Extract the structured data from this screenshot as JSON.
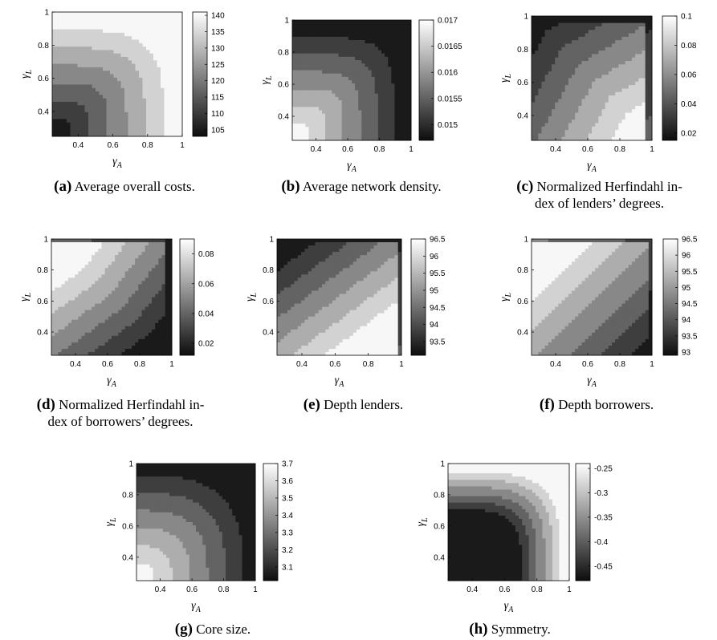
{
  "figure": {
    "x_axis_symbol": "γ",
    "x_axis_sub": "A",
    "y_axis_symbol": "γ",
    "y_axis_sub": "L"
  },
  "chart_data": [
    {
      "id": "a",
      "label": "(a)",
      "caption": "Average overall costs.",
      "caption_lines": [
        "Average overall costs."
      ],
      "type": "heatmap",
      "variant": "cost",
      "x_ticks": [
        "0.4",
        "0.6",
        "0.8",
        "1"
      ],
      "y_ticks": [
        "0.4",
        "0.6",
        "0.8",
        "1"
      ],
      "xlim": [
        0.25,
        1
      ],
      "ylim": [
        0.25,
        1
      ],
      "colorbar_ticks": [
        "140",
        "135",
        "130",
        "125",
        "120",
        "115",
        "110",
        "105"
      ],
      "colorbar_range": [
        103,
        141
      ]
    },
    {
      "id": "b",
      "label": "(b)",
      "caption": "Average network density.",
      "caption_lines": [
        "Average network density."
      ],
      "type": "heatmap",
      "variant": "density",
      "x_ticks": [
        "0.4",
        "0.6",
        "0.8",
        "1"
      ],
      "y_ticks": [
        "0.4",
        "0.6",
        "0.8",
        "1"
      ],
      "xlim": [
        0.25,
        1
      ],
      "ylim": [
        0.25,
        1
      ],
      "colorbar_ticks": [
        "0.017",
        "0.0165",
        "0.016",
        "0.0155",
        "0.015"
      ],
      "colorbar_range": [
        0.0147,
        0.017
      ]
    },
    {
      "id": "c",
      "label": "(c)",
      "caption": "Normalized Herfindahl index of lenders’ degrees.",
      "caption_lines": [
        "Normalized Herfindahl in-",
        "dex of lenders’ degrees."
      ],
      "type": "heatmap",
      "variant": "herf-lenders",
      "x_ticks": [
        "0.4",
        "0.6",
        "0.8",
        "1"
      ],
      "y_ticks": [
        "0.4",
        "0.6",
        "0.8",
        "1"
      ],
      "xlim": [
        0.25,
        1
      ],
      "ylim": [
        0.25,
        1
      ],
      "colorbar_ticks": [
        "0.1",
        "0.08",
        "0.06",
        "0.04",
        "0.02"
      ],
      "colorbar_range": [
        0.015,
        0.1
      ]
    },
    {
      "id": "d",
      "label": "(d)",
      "caption": "Normalized Herfindahl index of borrowers’ degrees.",
      "caption_lines": [
        "Normalized Herfindahl in-",
        "dex of borrowers’ degrees."
      ],
      "type": "heatmap",
      "variant": "herf-borrowers",
      "x_ticks": [
        "0.4",
        "0.6",
        "0.8",
        "1"
      ],
      "y_ticks": [
        "0.4",
        "0.6",
        "0.8",
        "1"
      ],
      "xlim": [
        0.25,
        1
      ],
      "ylim": [
        0.25,
        1
      ],
      "colorbar_ticks": [
        "0.08",
        "0.06",
        "0.04",
        "0.02"
      ],
      "colorbar_range": [
        0.012,
        0.09
      ]
    },
    {
      "id": "e",
      "label": "(e)",
      "caption": "Depth lenders.",
      "caption_lines": [
        "Depth lenders."
      ],
      "type": "heatmap",
      "variant": "depth-lenders",
      "x_ticks": [
        "0.4",
        "0.6",
        "0.8",
        "1"
      ],
      "y_ticks": [
        "0.4",
        "0.6",
        "0.8",
        "1"
      ],
      "xlim": [
        0.25,
        1
      ],
      "ylim": [
        0.25,
        1
      ],
      "colorbar_ticks": [
        "96.5",
        "96",
        "95.5",
        "95",
        "94.5",
        "94",
        "93.5"
      ],
      "colorbar_range": [
        93.1,
        96.5
      ]
    },
    {
      "id": "f",
      "label": "(f)",
      "caption": "Depth borrowers.",
      "caption_lines": [
        "Depth borrowers."
      ],
      "type": "heatmap",
      "variant": "depth-borrowers",
      "x_ticks": [
        "0.4",
        "0.6",
        "0.8",
        "1"
      ],
      "y_ticks": [
        "0.4",
        "0.6",
        "0.8",
        "1"
      ],
      "xlim": [
        0.25,
        1
      ],
      "ylim": [
        0.25,
        1
      ],
      "colorbar_ticks": [
        "96.5",
        "96",
        "95.5",
        "95",
        "94.5",
        "94",
        "93.5",
        "93"
      ],
      "colorbar_range": [
        92.9,
        96.5
      ]
    },
    {
      "id": "g",
      "label": "(g)",
      "caption": "Core size.",
      "caption_lines": [
        "Core size."
      ],
      "type": "heatmap",
      "variant": "core",
      "x_ticks": [
        "0.4",
        "0.6",
        "0.8",
        "1"
      ],
      "y_ticks": [
        "0.4",
        "0.6",
        "0.8",
        "1"
      ],
      "xlim": [
        0.25,
        1
      ],
      "ylim": [
        0.25,
        1
      ],
      "colorbar_ticks": [
        "3.7",
        "3.6",
        "3.5",
        "3.4",
        "3.3",
        "3.2",
        "3.1"
      ],
      "colorbar_range": [
        3.02,
        3.7
      ]
    },
    {
      "id": "h",
      "label": "(h)",
      "caption": "Symmetry.",
      "caption_lines": [
        "Symmetry."
      ],
      "type": "heatmap",
      "variant": "symmetry",
      "x_ticks": [
        "0.4",
        "0.6",
        "0.8",
        "1"
      ],
      "y_ticks": [
        "0.4",
        "0.6",
        "0.8",
        "1"
      ],
      "xlim": [
        0.25,
        1
      ],
      "ylim": [
        0.25,
        1
      ],
      "colorbar_ticks": [
        "-0.25",
        "-0.3",
        "-0.35",
        "-0.4",
        "-0.45"
      ],
      "colorbar_range": [
        -0.48,
        -0.24
      ]
    }
  ]
}
